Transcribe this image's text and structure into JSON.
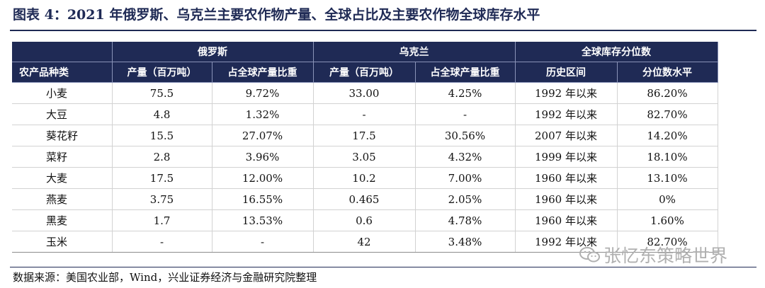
{
  "title": "图表 4：2021 年俄罗斯、乌克兰主要农作物产量、全球占比及主要农作物全球库存水平",
  "header": {
    "group_russia": "俄罗斯",
    "group_ukraine": "乌克兰",
    "group_stock": "全球库存分位数",
    "col_category": "农产品种类",
    "col_ru_output": "产量（百万吨）",
    "col_ru_share": "占全球产量比重",
    "col_ua_output": "产量（百万吨）",
    "col_ua_share": "占全球产量比重",
    "col_period": "历史区间",
    "col_percentile": "分位数水平"
  },
  "rows": [
    {
      "category": "小麦",
      "ru_output": "75.5",
      "ru_share": "9.72%",
      "ua_output": "33.00",
      "ua_share": "4.25%",
      "period": "1992 年以来",
      "percentile": "86.20%"
    },
    {
      "category": "大豆",
      "ru_output": "4.8",
      "ru_share": "1.32%",
      "ua_output": "-",
      "ua_share": "-",
      "period": "1992 年以来",
      "percentile": "82.70%"
    },
    {
      "category": "葵花籽",
      "ru_output": "15.5",
      "ru_share": "27.07%",
      "ua_output": "17.5",
      "ua_share": "30.56%",
      "period": "2007 年以来",
      "percentile": "14.20%"
    },
    {
      "category": "菜籽",
      "ru_output": "2.8",
      "ru_share": "3.96%",
      "ua_output": "3.05",
      "ua_share": "4.32%",
      "period": "1999 年以来",
      "percentile": "18.10%"
    },
    {
      "category": "大麦",
      "ru_output": "17.5",
      "ru_share": "12.00%",
      "ua_output": "10.2",
      "ua_share": "7.00%",
      "period": "1960 年以来",
      "percentile": "13.10%"
    },
    {
      "category": "燕麦",
      "ru_output": "3.75",
      "ru_share": "16.55%",
      "ua_output": "0.465",
      "ua_share": "2.05%",
      "period": "1960 年以来",
      "percentile": "0%"
    },
    {
      "category": "黑麦",
      "ru_output": "1.7",
      "ru_share": "13.53%",
      "ua_output": "0.6",
      "ua_share": "4.78%",
      "period": "1960 年以来",
      "percentile": "1.60%"
    },
    {
      "category": "玉米",
      "ru_output": "-",
      "ru_share": "-",
      "ua_output": "42",
      "ua_share": "3.48%",
      "period": "1992 年以来",
      "percentile": "82.70%"
    }
  ],
  "source": "数据来源：美国农业部，Wind，兴业证券经济与金融研究院整理",
  "watermark": "张忆东策略世界",
  "colors": {
    "header_bg": "#1f2a55",
    "header_text": "#ffffff",
    "watermark": "#b0b0b0"
  },
  "icons": {
    "watermark_icon": "wechat-icon"
  }
}
